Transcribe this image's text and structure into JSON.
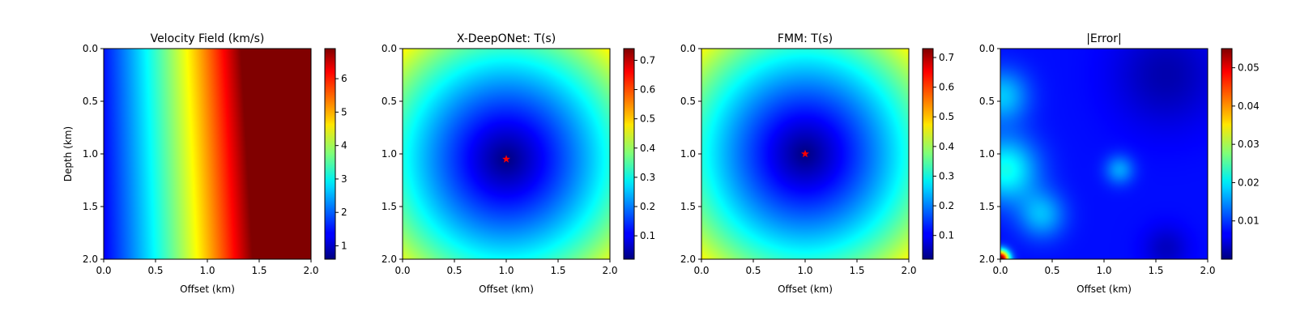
{
  "chart_data": [
    {
      "type": "heatmap",
      "title": "Velocity Field (km/s)",
      "xlabel": "Offset (km)",
      "ylabel": "Depth (km)",
      "xlim": [
        0.0,
        2.0
      ],
      "ylim": [
        2.0,
        0.0
      ],
      "x_ticks": [
        "0.0",
        "0.5",
        "1.0",
        "1.5",
        "2.0"
      ],
      "y_ticks": [
        "0.0",
        "0.5",
        "1.0",
        "1.5",
        "2.0"
      ],
      "colormap": "jet",
      "colorbar_range": [
        0.6,
        6.9
      ],
      "colorbar_ticks": [
        "1",
        "2",
        "3",
        "4",
        "5",
        "6"
      ],
      "colorbar_tick_values": [
        1,
        2,
        3,
        4,
        5,
        6
      ],
      "source_marker": null
    },
    {
      "type": "heatmap",
      "title": "X-DeepONet: T(s)",
      "xlabel": "Offset (km)",
      "ylabel": "",
      "xlim": [
        0.0,
        2.0
      ],
      "ylim": [
        2.0,
        0.0
      ],
      "x_ticks": [
        "0.0",
        "0.5",
        "1.0",
        "1.5",
        "2.0"
      ],
      "y_ticks": [
        "0.0",
        "0.5",
        "1.0",
        "1.5",
        "2.0"
      ],
      "colormap": "jet",
      "colorbar_range": [
        0.02,
        0.74
      ],
      "colorbar_ticks": [
        "0.1",
        "0.2",
        "0.3",
        "0.4",
        "0.5",
        "0.6",
        "0.7"
      ],
      "colorbar_tick_values": [
        0.1,
        0.2,
        0.3,
        0.4,
        0.5,
        0.6,
        0.7
      ],
      "source_marker": {
        "x": 1.0,
        "y": 1.05,
        "marker": "star",
        "color": "#ff0000"
      }
    },
    {
      "type": "heatmap",
      "title": "FMM: T(s)",
      "xlabel": "Offset (km)",
      "ylabel": "",
      "xlim": [
        0.0,
        2.0
      ],
      "ylim": [
        2.0,
        0.0
      ],
      "x_ticks": [
        "0.0",
        "0.5",
        "1.0",
        "1.5",
        "2.0"
      ],
      "y_ticks": [
        "0.0",
        "0.5",
        "1.0",
        "1.5",
        "2.0"
      ],
      "colormap": "jet",
      "colorbar_range": [
        0.02,
        0.73
      ],
      "colorbar_ticks": [
        "0.1",
        "0.2",
        "0.3",
        "0.4",
        "0.5",
        "0.6",
        "0.7"
      ],
      "colorbar_tick_values": [
        0.1,
        0.2,
        0.3,
        0.4,
        0.5,
        0.6,
        0.7
      ],
      "source_marker": {
        "x": 1.0,
        "y": 1.0,
        "marker": "star",
        "color": "#ff0000"
      }
    },
    {
      "type": "heatmap",
      "title": "|Error|",
      "xlabel": "Offset (km)",
      "ylabel": "",
      "xlim": [
        0.0,
        2.0
      ],
      "ylim": [
        2.0,
        0.0
      ],
      "x_ticks": [
        "0.0",
        "0.5",
        "1.0",
        "1.5",
        "2.0"
      ],
      "y_ticks": [
        "0.0",
        "0.5",
        "1.0",
        "1.5",
        "2.0"
      ],
      "colormap": "jet",
      "colorbar_range": [
        0.0,
        0.055
      ],
      "colorbar_ticks": [
        "0.01",
        "0.02",
        "0.03",
        "0.04",
        "0.05"
      ],
      "colorbar_tick_values": [
        0.01,
        0.02,
        0.03,
        0.04,
        0.05
      ],
      "source_marker": null
    }
  ]
}
